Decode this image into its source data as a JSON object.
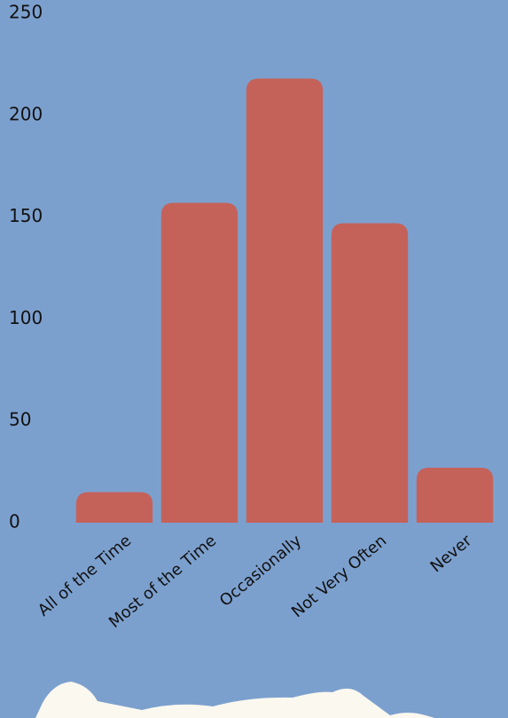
{
  "chart_data": {
    "type": "bar",
    "categories": [
      "All of the Time",
      "Most of the Time",
      "Occasionally",
      "Not Very Often",
      "Never"
    ],
    "values": [
      15,
      157,
      218,
      147,
      27
    ],
    "color": "#c4625a",
    "ylim": [
      0,
      250
    ],
    "yticks": [
      0,
      50,
      100,
      150,
      200,
      250
    ],
    "grid": false
  }
}
